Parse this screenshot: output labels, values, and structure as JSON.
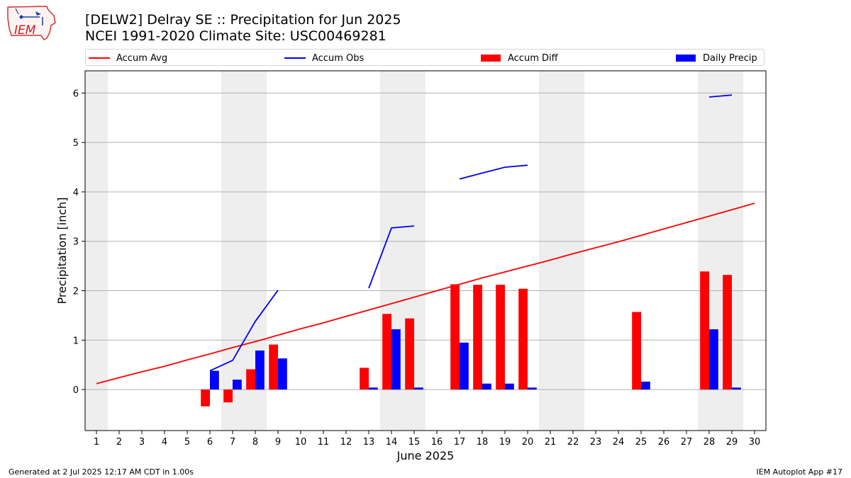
{
  "header": {
    "title_line1": "[DELW2] Delray SE :: Precipitation for Jun 2025",
    "title_line2": "NCEI 1991-2020 Climate Site: USC00469281",
    "logo_text": "IEM"
  },
  "footer": {
    "generated": "Generated at 2 Jul 2025 12:17 AM CDT in 1.00s",
    "app": "IEM Autoplot App #17"
  },
  "colors": {
    "accum_avg": "#ff0000",
    "accum_obs": "#0000ff",
    "accum_diff": "#ff0000",
    "daily_precip": "#0000ff",
    "weekend_shade": "#eeeeee",
    "grid": "#b0b0b0"
  },
  "chart_data": {
    "type": "bar",
    "xlabel": "June 2025",
    "ylabel": "Precipitation [inch]",
    "x": [
      1,
      2,
      3,
      4,
      5,
      6,
      7,
      8,
      9,
      10,
      11,
      12,
      13,
      14,
      15,
      16,
      17,
      18,
      19,
      20,
      21,
      22,
      23,
      24,
      25,
      26,
      27,
      28,
      29,
      30
    ],
    "x_tick_labels": [
      "1",
      "2",
      "3",
      "4",
      "5",
      "6",
      "7",
      "8",
      "9",
      "10",
      "11",
      "12",
      "13",
      "14",
      "15",
      "16",
      "17",
      "18",
      "19",
      "20",
      "21",
      "22",
      "23",
      "24",
      "25",
      "26",
      "27",
      "28",
      "29",
      "30"
    ],
    "xlim": [
      0.5,
      30.5
    ],
    "ylim": [
      -0.83,
      6.45
    ],
    "y_ticks": [
      0,
      1,
      2,
      3,
      4,
      5,
      6
    ],
    "grid": "horizontal",
    "legend_position": "top",
    "shaded_weekend_days": [
      1,
      7,
      8,
      14,
      15,
      21,
      22,
      28,
      29
    ],
    "series": [
      {
        "name": "Accum Avg",
        "kind": "line",
        "values": [
          0.12,
          0.24,
          0.36,
          0.47,
          0.6,
          0.72,
          0.85,
          0.97,
          1.1,
          1.23,
          1.35,
          1.48,
          1.61,
          1.74,
          1.87,
          2.0,
          2.13,
          2.26,
          2.38,
          2.5,
          2.62,
          2.75,
          2.87,
          2.99,
          3.12,
          3.25,
          3.38,
          3.51,
          3.64,
          3.77
        ]
      },
      {
        "name": "Accum Obs",
        "kind": "line",
        "values": [
          null,
          null,
          null,
          null,
          null,
          0.38,
          0.59,
          1.38,
          2.01,
          null,
          null,
          null,
          2.05,
          3.27,
          3.31,
          null,
          4.26,
          4.38,
          4.5,
          4.54,
          null,
          null,
          null,
          null,
          null,
          null,
          null,
          5.92,
          5.96,
          null
        ]
      },
      {
        "name": "Accum Diff",
        "kind": "bar",
        "values": [
          null,
          null,
          null,
          null,
          null,
          -0.34,
          -0.26,
          0.41,
          0.91,
          null,
          null,
          null,
          0.44,
          1.53,
          1.44,
          null,
          2.13,
          2.12,
          2.12,
          2.04,
          null,
          null,
          null,
          null,
          1.57,
          null,
          null,
          2.39,
          2.32,
          null
        ]
      },
      {
        "name": "Daily Precip",
        "kind": "bar",
        "values": [
          null,
          null,
          null,
          null,
          null,
          0.38,
          0.2,
          0.79,
          0.63,
          null,
          null,
          null,
          0.04,
          1.22,
          0.04,
          null,
          0.95,
          0.12,
          0.12,
          0.04,
          null,
          null,
          null,
          null,
          0.16,
          null,
          null,
          1.22,
          0.04,
          null
        ]
      }
    ]
  }
}
